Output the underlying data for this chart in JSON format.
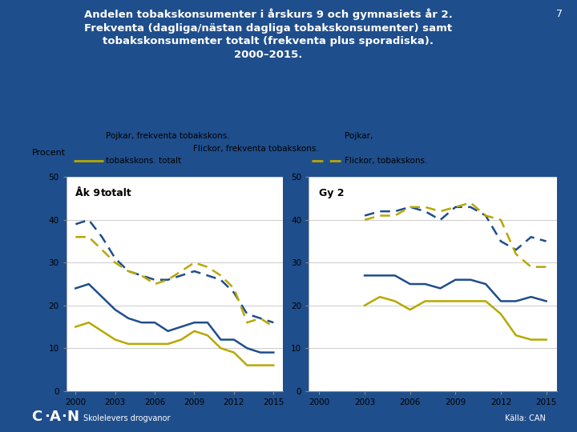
{
  "title_line1": "Andelen tobakskonsumenter i årskurs 9 och gymnasiets år 2.",
  "title_line2": "Frekventa (dagliga/nästan dagliga tobakskonsumenter) samt",
  "title_line3": "tobakskonsumenter totalt (frekventa plus sporadiska).",
  "title_line4": "2000–2015.",
  "page_number": "7",
  "bg_color": "#1F4E8C",
  "plot_bg": "#FFFFFF",
  "title_color": "#FFFFFF",
  "ylabel": "Procent",
  "label_ak9": "Åk 9",
  "label_gy2": "Gy 2",
  "label_totalt": "totalt",
  "color_p": "#1F4E8C",
  "color_f": "#B8A800",
  "years": [
    2000,
    2001,
    2002,
    2003,
    2004,
    2005,
    2006,
    2007,
    2008,
    2009,
    2010,
    2011,
    2012,
    2013,
    2014,
    2015
  ],
  "ak9_pf": [
    24,
    25,
    22,
    19,
    17,
    16,
    16,
    14,
    15,
    16,
    16,
    12,
    12,
    10,
    9,
    9
  ],
  "ak9_ff": [
    15,
    16,
    14,
    12,
    11,
    11,
    11,
    11,
    12,
    14,
    13,
    10,
    9,
    6,
    6,
    6
  ],
  "ak9_pt": [
    39,
    40,
    36,
    31,
    28,
    27,
    26,
    26,
    27,
    28,
    27,
    26,
    23,
    18,
    17,
    16
  ],
  "ak9_ft": [
    36,
    36,
    33,
    30,
    28,
    27,
    25,
    26,
    28,
    30,
    29,
    27,
    24,
    16,
    17,
    15
  ],
  "gy2_pf": [
    null,
    null,
    null,
    27,
    27,
    27,
    25,
    25,
    24,
    26,
    26,
    25,
    21,
    21,
    22,
    21
  ],
  "gy2_ff": [
    null,
    null,
    null,
    20,
    22,
    21,
    19,
    21,
    21,
    21,
    21,
    21,
    18,
    13,
    12,
    12
  ],
  "gy2_pt": [
    null,
    null,
    null,
    41,
    42,
    42,
    43,
    42,
    40,
    43,
    43,
    41,
    35,
    33,
    36,
    35
  ],
  "gy2_ft": [
    null,
    null,
    null,
    40,
    41,
    41,
    43,
    43,
    42,
    43,
    44,
    41,
    40,
    32,
    29,
    29
  ],
  "ylim": [
    0,
    50
  ],
  "yticks": [
    0,
    10,
    20,
    30,
    40,
    50
  ],
  "xticks": [
    2000,
    2003,
    2006,
    2009,
    2012,
    2015
  ],
  "leg_pf": "Pojkar, frekventa tobakskons.",
  "leg_pt_1": "Pojkar,",
  "leg_pt_2": "tobakskons. totalt",
  "leg_ff": "Flickor, frekventa tobakskons.",
  "leg_ft": "Flickor, tobakskons.",
  "source_l": "Skolelevers drogvanor",
  "source_r": "Källa: CAN"
}
